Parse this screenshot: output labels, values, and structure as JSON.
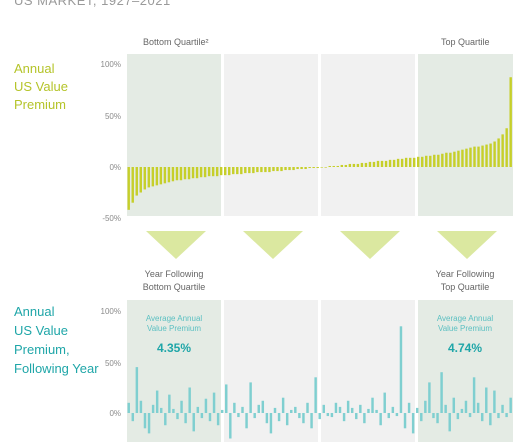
{
  "header": {
    "title": "US MARKET, 1927–2021"
  },
  "top_label": [
    "Annual",
    "US Value",
    "Premium"
  ],
  "bottom_label": [
    "Annual",
    "US Value",
    "Premium,",
    "Following Year"
  ],
  "colors": {
    "top_bars": "#c6cf2a",
    "bottom_bars": "#7fcfd0",
    "quartile_bg": "#e4ebe4",
    "middle_bg": "#f1f1f1",
    "title": "#9a9a9a",
    "teal_text": "#1fa6a8",
    "lime_text": "#b5c42a"
  },
  "chart_data": [
    {
      "type": "bar",
      "title": "Annual US Value Premium",
      "ylabel": "Annual US Value Premium",
      "ylim": [
        -50,
        100
      ],
      "y_ticks": [
        "100%",
        "50%",
        "0%",
        "-50%"
      ],
      "quartile_labels": [
        "Bottom Quartile²",
        "Top Quartile"
      ],
      "grid": false,
      "values": [
        -42,
        -35,
        -28,
        -25,
        -22,
        -20,
        -19,
        -18,
        -17,
        -16,
        -15,
        -14,
        -13,
        -13,
        -12,
        -12,
        -11,
        -11,
        -10,
        -10,
        -9,
        -9,
        -9,
        -8,
        -8,
        -8,
        -7,
        -7,
        -7,
        -6,
        -6,
        -6,
        -5,
        -5,
        -5,
        -5,
        -4,
        -4,
        -4,
        -3,
        -3,
        -3,
        -2,
        -2,
        -2,
        -1,
        -1,
        -1,
        0,
        0,
        1,
        1,
        1,
        2,
        2,
        3,
        3,
        3,
        4,
        4,
        5,
        5,
        6,
        6,
        6,
        7,
        7,
        8,
        8,
        9,
        9,
        9,
        10,
        10,
        11,
        11,
        12,
        12,
        13,
        14,
        14,
        15,
        16,
        17,
        18,
        19,
        20,
        20,
        21,
        22,
        23,
        25,
        28,
        32,
        38,
        88
      ]
    },
    {
      "type": "bar",
      "title": "Annual US Value Premium, Following Year",
      "ylabel": "Annual US Value Premium, Following Year",
      "ylim": [
        -50,
        100
      ],
      "y_ticks": [
        "100%",
        "50%",
        "0%"
      ],
      "quartile_labels": [
        "Year Following Bottom Quartile",
        "Year Following Top Quartile"
      ],
      "annotations": [
        {
          "label": "Average Annual Value Premium",
          "value": "4.35%"
        },
        {
          "label": "Average Annual Value Premium",
          "value": "4.74%"
        }
      ],
      "values": [
        10,
        -8,
        45,
        12,
        -15,
        -20,
        8,
        22,
        5,
        -12,
        18,
        4,
        -6,
        12,
        -10,
        25,
        -18,
        6,
        -5,
        14,
        -8,
        20,
        -12,
        3,
        28,
        -25,
        10,
        -4,
        6,
        -15,
        30,
        -5,
        8,
        12,
        -10,
        -20,
        5,
        -8,
        15,
        -12,
        3,
        6,
        -5,
        -10,
        10,
        -15,
        35,
        -6,
        8,
        -3,
        -4,
        10,
        6,
        -8,
        12,
        5,
        -6,
        8,
        -10,
        4,
        15,
        3,
        -12,
        20,
        -5,
        6,
        -3,
        85,
        -15,
        10,
        -20,
        5,
        -8,
        12,
        30,
        -5,
        -10,
        40,
        8,
        -18,
        15,
        -6,
        4,
        12,
        -4,
        35,
        10,
        -8,
        25,
        -12,
        22,
        -5,
        8,
        -4,
        15
      ]
    }
  ]
}
